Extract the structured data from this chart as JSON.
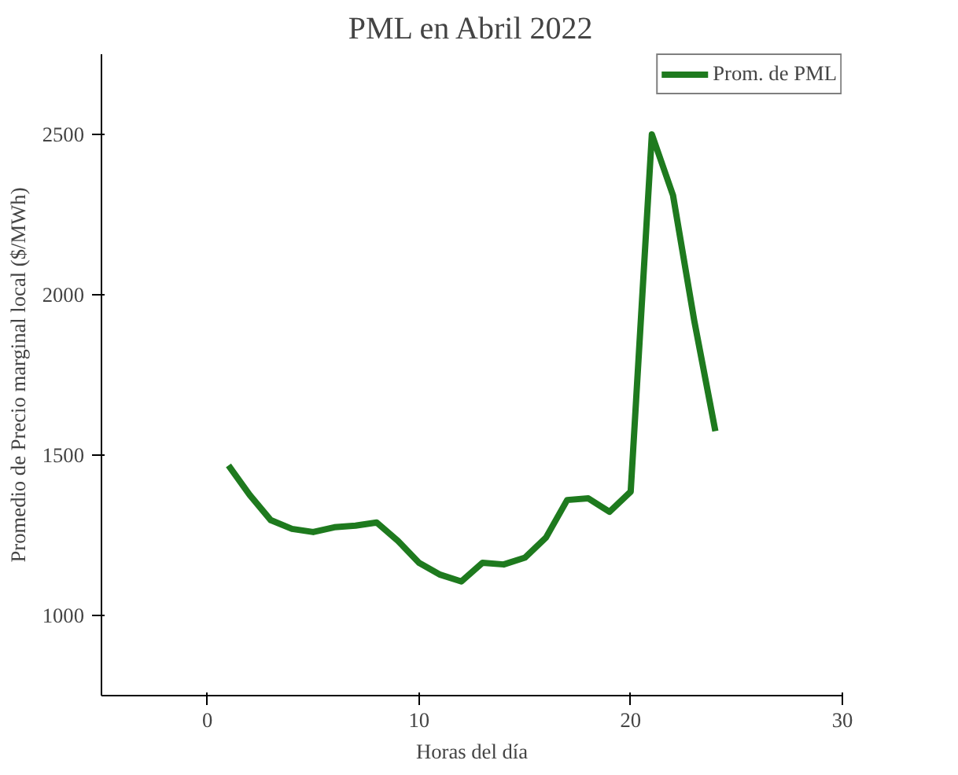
{
  "chart_data": {
    "type": "line",
    "title": "PML en Abril 2022",
    "xlabel": "Horas del día",
    "ylabel": "Promedio de Precio marginal local ($/MWh)",
    "x": [
      1,
      2,
      3,
      4,
      5,
      6,
      7,
      8,
      9,
      10,
      11,
      12,
      13,
      14,
      15,
      16,
      17,
      18,
      19,
      20,
      21,
      22,
      23,
      24
    ],
    "series": [
      {
        "name": "Prom. de PML",
        "color": "#1e7a1e",
        "values": [
          1468,
          1376,
          1297,
          1270,
          1260,
          1275,
          1280,
          1290,
          1233,
          1164,
          1127,
          1106,
          1164,
          1159,
          1180,
          1243,
          1360,
          1365,
          1323,
          1386,
          2500,
          2310,
          1920,
          1575
        ]
      }
    ],
    "xlim": [
      -5,
      30
    ],
    "xticks": [
      0,
      10,
      20,
      30
    ],
    "ylim": [
      750,
      2750
    ],
    "yticks": [
      1000,
      1500,
      2000,
      2500
    ],
    "grid": false,
    "legend": "top right",
    "marker": "none",
    "line_style": "solid"
  }
}
